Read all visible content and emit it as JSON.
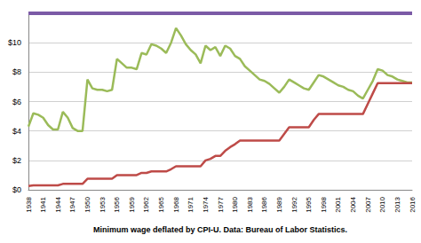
{
  "chart_data": {
    "type": "line",
    "xlabel": "Minimum wage deflated by CPI-U. Data: Bureau of Labor Statistics.",
    "categories": [
      "1938",
      null,
      null,
      "1941",
      null,
      null,
      "1944",
      null,
      null,
      "1947",
      null,
      null,
      "1950",
      null,
      null,
      "1953",
      null,
      null,
      "1956",
      null,
      null,
      "1959",
      null,
      null,
      "1962",
      null,
      null,
      "1965",
      null,
      null,
      "1968",
      null,
      null,
      "1971",
      null,
      null,
      "1974",
      null,
      null,
      "1977",
      null,
      null,
      "1980",
      null,
      null,
      "1983",
      null,
      null,
      "1986",
      null,
      null,
      "1989",
      null,
      null,
      "1992",
      null,
      null,
      "1995",
      null,
      null,
      "1998",
      null,
      null,
      "2001",
      null,
      null,
      "2004",
      null,
      null,
      "2007",
      null,
      null,
      "2010",
      null,
      null,
      "2013",
      null,
      null,
      "2016"
    ],
    "series": [
      {
        "color": "#7b5aa6",
        "values": [
          12,
          12,
          12,
          12,
          12,
          12,
          12,
          12,
          12,
          12,
          12,
          12,
          12,
          12,
          12,
          12,
          12,
          12,
          12,
          12,
          12,
          12,
          12,
          12,
          12,
          12,
          12,
          12,
          12,
          12,
          12,
          12,
          12,
          12,
          12,
          12,
          12,
          12,
          12,
          12,
          12,
          12,
          12,
          12,
          12,
          12,
          12,
          12,
          12,
          12,
          12,
          12,
          12,
          12,
          12,
          12,
          12,
          12,
          12,
          12,
          12,
          12,
          12,
          12,
          12,
          12,
          12,
          12,
          12,
          12,
          12,
          12,
          12,
          12,
          12,
          12,
          12,
          12,
          12
        ]
      },
      {
        "color": "#9bbb59",
        "values": [
          4.3,
          5.2,
          5.1,
          4.9,
          4.4,
          4.1,
          4.1,
          5.3,
          4.9,
          4.2,
          4.0,
          4.0,
          7.5,
          6.9,
          6.8,
          6.8,
          6.7,
          6.8,
          8.9,
          8.6,
          8.3,
          8.3,
          8.2,
          9.3,
          9.2,
          9.9,
          9.8,
          9.6,
          9.3,
          10.0,
          11.0,
          10.5,
          9.9,
          9.5,
          9.2,
          8.6,
          9.8,
          9.5,
          9.7,
          9.1,
          9.8,
          9.6,
          9.1,
          8.9,
          8.4,
          8.1,
          7.8,
          7.5,
          7.4,
          7.2,
          6.9,
          6.6,
          7.0,
          7.5,
          7.3,
          7.1,
          6.9,
          6.8,
          7.3,
          7.8,
          7.7,
          7.5,
          7.3,
          7.1,
          7.0,
          6.8,
          6.7,
          6.4,
          6.2,
          6.8,
          7.4,
          8.2,
          8.1,
          7.8,
          7.7,
          7.5,
          7.4,
          7.3,
          7.3
        ]
      },
      {
        "color": "#be4b48",
        "values": [
          0.25,
          0.3,
          0.3,
          0.3,
          0.3,
          0.3,
          0.3,
          0.4,
          0.4,
          0.4,
          0.4,
          0.4,
          0.75,
          0.75,
          0.75,
          0.75,
          0.75,
          0.75,
          1.0,
          1.0,
          1.0,
          1.0,
          1.0,
          1.15,
          1.15,
          1.25,
          1.25,
          1.25,
          1.25,
          1.4,
          1.6,
          1.6,
          1.6,
          1.6,
          1.6,
          1.6,
          2.0,
          2.1,
          2.3,
          2.3,
          2.65,
          2.9,
          3.1,
          3.35,
          3.35,
          3.35,
          3.35,
          3.35,
          3.35,
          3.35,
          3.35,
          3.35,
          3.8,
          4.25,
          4.25,
          4.25,
          4.25,
          4.25,
          4.75,
          5.15,
          5.15,
          5.15,
          5.15,
          5.15,
          5.15,
          5.15,
          5.15,
          5.15,
          5.15,
          5.85,
          6.55,
          7.25,
          7.25,
          7.25,
          7.25,
          7.25,
          7.25,
          7.25,
          7.25
        ]
      }
    ],
    "ylim": [
      0,
      12
    ],
    "yticks": [
      {
        "value": 0,
        "label": "$0"
      },
      {
        "value": 2,
        "label": "$2"
      },
      {
        "value": 4,
        "label": "$4"
      },
      {
        "value": 6,
        "label": "$6"
      },
      {
        "value": 8,
        "label": "$8"
      },
      {
        "value": 10,
        "label": "$10"
      }
    ],
    "grid": true
  }
}
